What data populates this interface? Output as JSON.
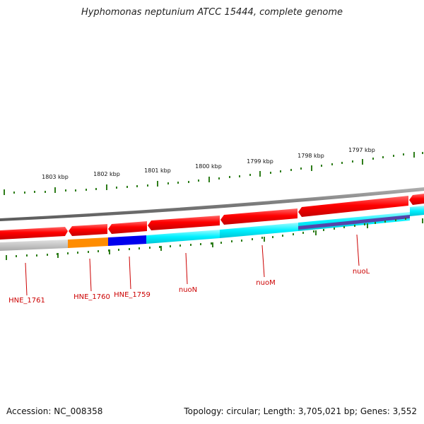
{
  "title": "Hyphomonas neptunium ATCC 15444, complete genome",
  "footer": {
    "accession": "Accession: NC_008358",
    "summary": "Topology: circular; Length: 3,705,021 bp; Genes: 3,552"
  },
  "scale_labels": [
    "1803 kbp",
    "1802 kbp",
    "1801 kbp",
    "1800 kbp",
    "1799 kbp",
    "1798 kbp",
    "1797 kbp"
  ],
  "gene_labels": [
    "HNE_1761",
    "HNE_1760",
    "HNE_1759",
    "nuoN",
    "nuoM",
    "nuoL"
  ],
  "colors": {
    "cds_red": "#ff0000",
    "cyan": "#00ffff",
    "gray": "#bbbbbb",
    "orange": "#ff8c00",
    "blue": "#0000ee",
    "purple": "#5544aa",
    "tick_green": "#2e7d1a",
    "label_red": "#cc0000"
  }
}
